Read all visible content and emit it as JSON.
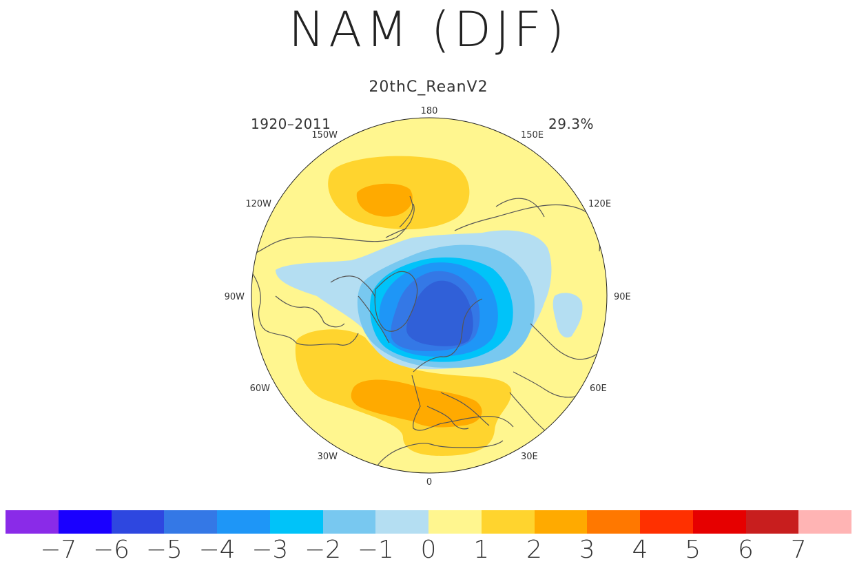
{
  "title": "NAM (DJF)",
  "subtitle": "20thC_ReanV2",
  "period_label": "1920–2011",
  "variance_label": "29.3%",
  "longitude_labels": {
    "top": "180",
    "bottom": "0",
    "left": "90W",
    "right": "90E",
    "w150": "150W",
    "e150": "150E",
    "w120": "120W",
    "e120": "120E",
    "w60": "60W",
    "e60": "60E",
    "w30": "30W",
    "e30": "30E"
  },
  "colorbar": {
    "segments": [
      {
        "color": "#8a2be8"
      },
      {
        "color": "#1a00ff"
      },
      {
        "color": "#2e47e0"
      },
      {
        "color": "#3478e6"
      },
      {
        "color": "#1e96f7"
      },
      {
        "color": "#00c3f9"
      },
      {
        "color": "#78c8f0"
      },
      {
        "color": "#b4def2"
      },
      {
        "color": "#fff68f"
      },
      {
        "color": "#ffd42e"
      },
      {
        "color": "#ffaa00"
      },
      {
        "color": "#ff7800"
      },
      {
        "color": "#ff3000"
      },
      {
        "color": "#e60000"
      },
      {
        "color": "#c81e1e"
      },
      {
        "color": "#ffb4b4"
      }
    ],
    "ticks": [
      "−7",
      "−6",
      "−5",
      "−4",
      "−3",
      "−2",
      "−1",
      "0",
      "1",
      "2",
      "3",
      "4",
      "5",
      "6",
      "7"
    ]
  }
}
